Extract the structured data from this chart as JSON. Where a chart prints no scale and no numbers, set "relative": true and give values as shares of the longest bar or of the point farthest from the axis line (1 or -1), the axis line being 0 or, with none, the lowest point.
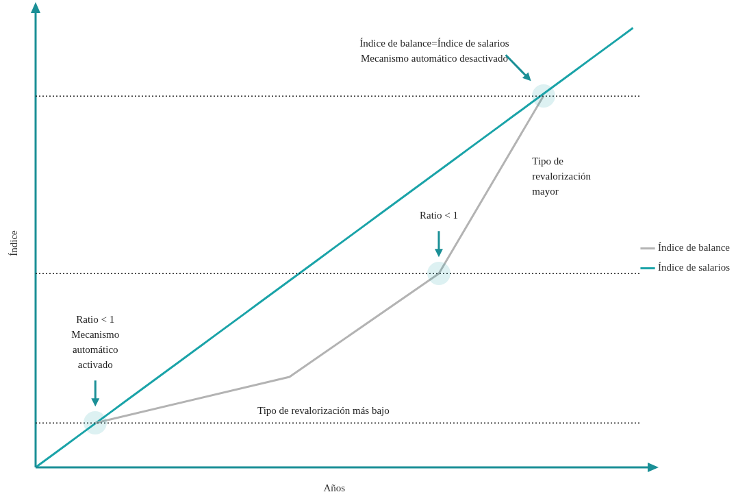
{
  "chart_data": {
    "type": "line",
    "relative": true,
    "xlabel": "Años",
    "ylabel": "Índice",
    "tick_labels": false,
    "grid": false,
    "legend": "right",
    "line_style": "solid",
    "categories": [
      null,
      null,
      null,
      null,
      null,
      null,
      null,
      null,
      null,
      null,
      null,
      null,
      null,
      null,
      null,
      null,
      null,
      null,
      null,
      null,
      null,
      null,
      null,
      null,
      null,
      null,
      null,
      null,
      null,
      null,
      null,
      null,
      null,
      null,
      null,
      null,
      null,
      null,
      null,
      null,
      null
    ],
    "series": [
      {
        "name": "Índice de balance",
        "color": "#b3b3b3",
        "values": [
          null,
          null,
          null,
          null,
          0.101,
          null,
          null,
          null,
          null,
          null,
          null,
          null,
          null,
          null,
          null,
          null,
          null,
          0.206,
          null,
          null,
          null,
          null,
          null,
          null,
          null,
          null,
          null,
          0.441,
          null,
          null,
          null,
          null,
          null,
          null,
          0.845,
          null,
          null,
          null,
          null,
          null,
          null
        ]
      },
      {
        "name": "Índice de salarios",
        "color": "#1aa3a8",
        "values": [
          0,
          0.025,
          0.05,
          0.075,
          0.1,
          0.125,
          0.15,
          0.175,
          0.2,
          0.225,
          0.25,
          0.275,
          0.3,
          0.325,
          0.35,
          0.375,
          0.4,
          0.425,
          0.45,
          0.475,
          0.5,
          0.525,
          0.55,
          0.575,
          0.6,
          0.625,
          0.65,
          0.675,
          0.7,
          0.725,
          0.75,
          0.775,
          0.8,
          0.825,
          0.85,
          0.875,
          0.9,
          0.925,
          0.95,
          0.975,
          1
        ]
      }
    ],
    "ref_lines": [
      {
        "axis": "y",
        "value": 0.845,
        "color": "#222222",
        "line_style": "dotted"
      },
      {
        "axis": "y",
        "value": 0.441,
        "color": "#222222",
        "line_style": "dotted"
      },
      {
        "axis": "y",
        "value": 0.101,
        "color": "#222222",
        "line_style": "dotted"
      }
    ],
    "annotations": [
      "Índice de balance=Índice de salarios\nMecanismo automático desactivado",
      "Ratio < 1",
      "Ratio < 1\nMecanismo\nautomático\nactivado",
      "Tipo de revalorización más bajo",
      "Tipo de\nrevalorización\nmayor"
    ]
  }
}
